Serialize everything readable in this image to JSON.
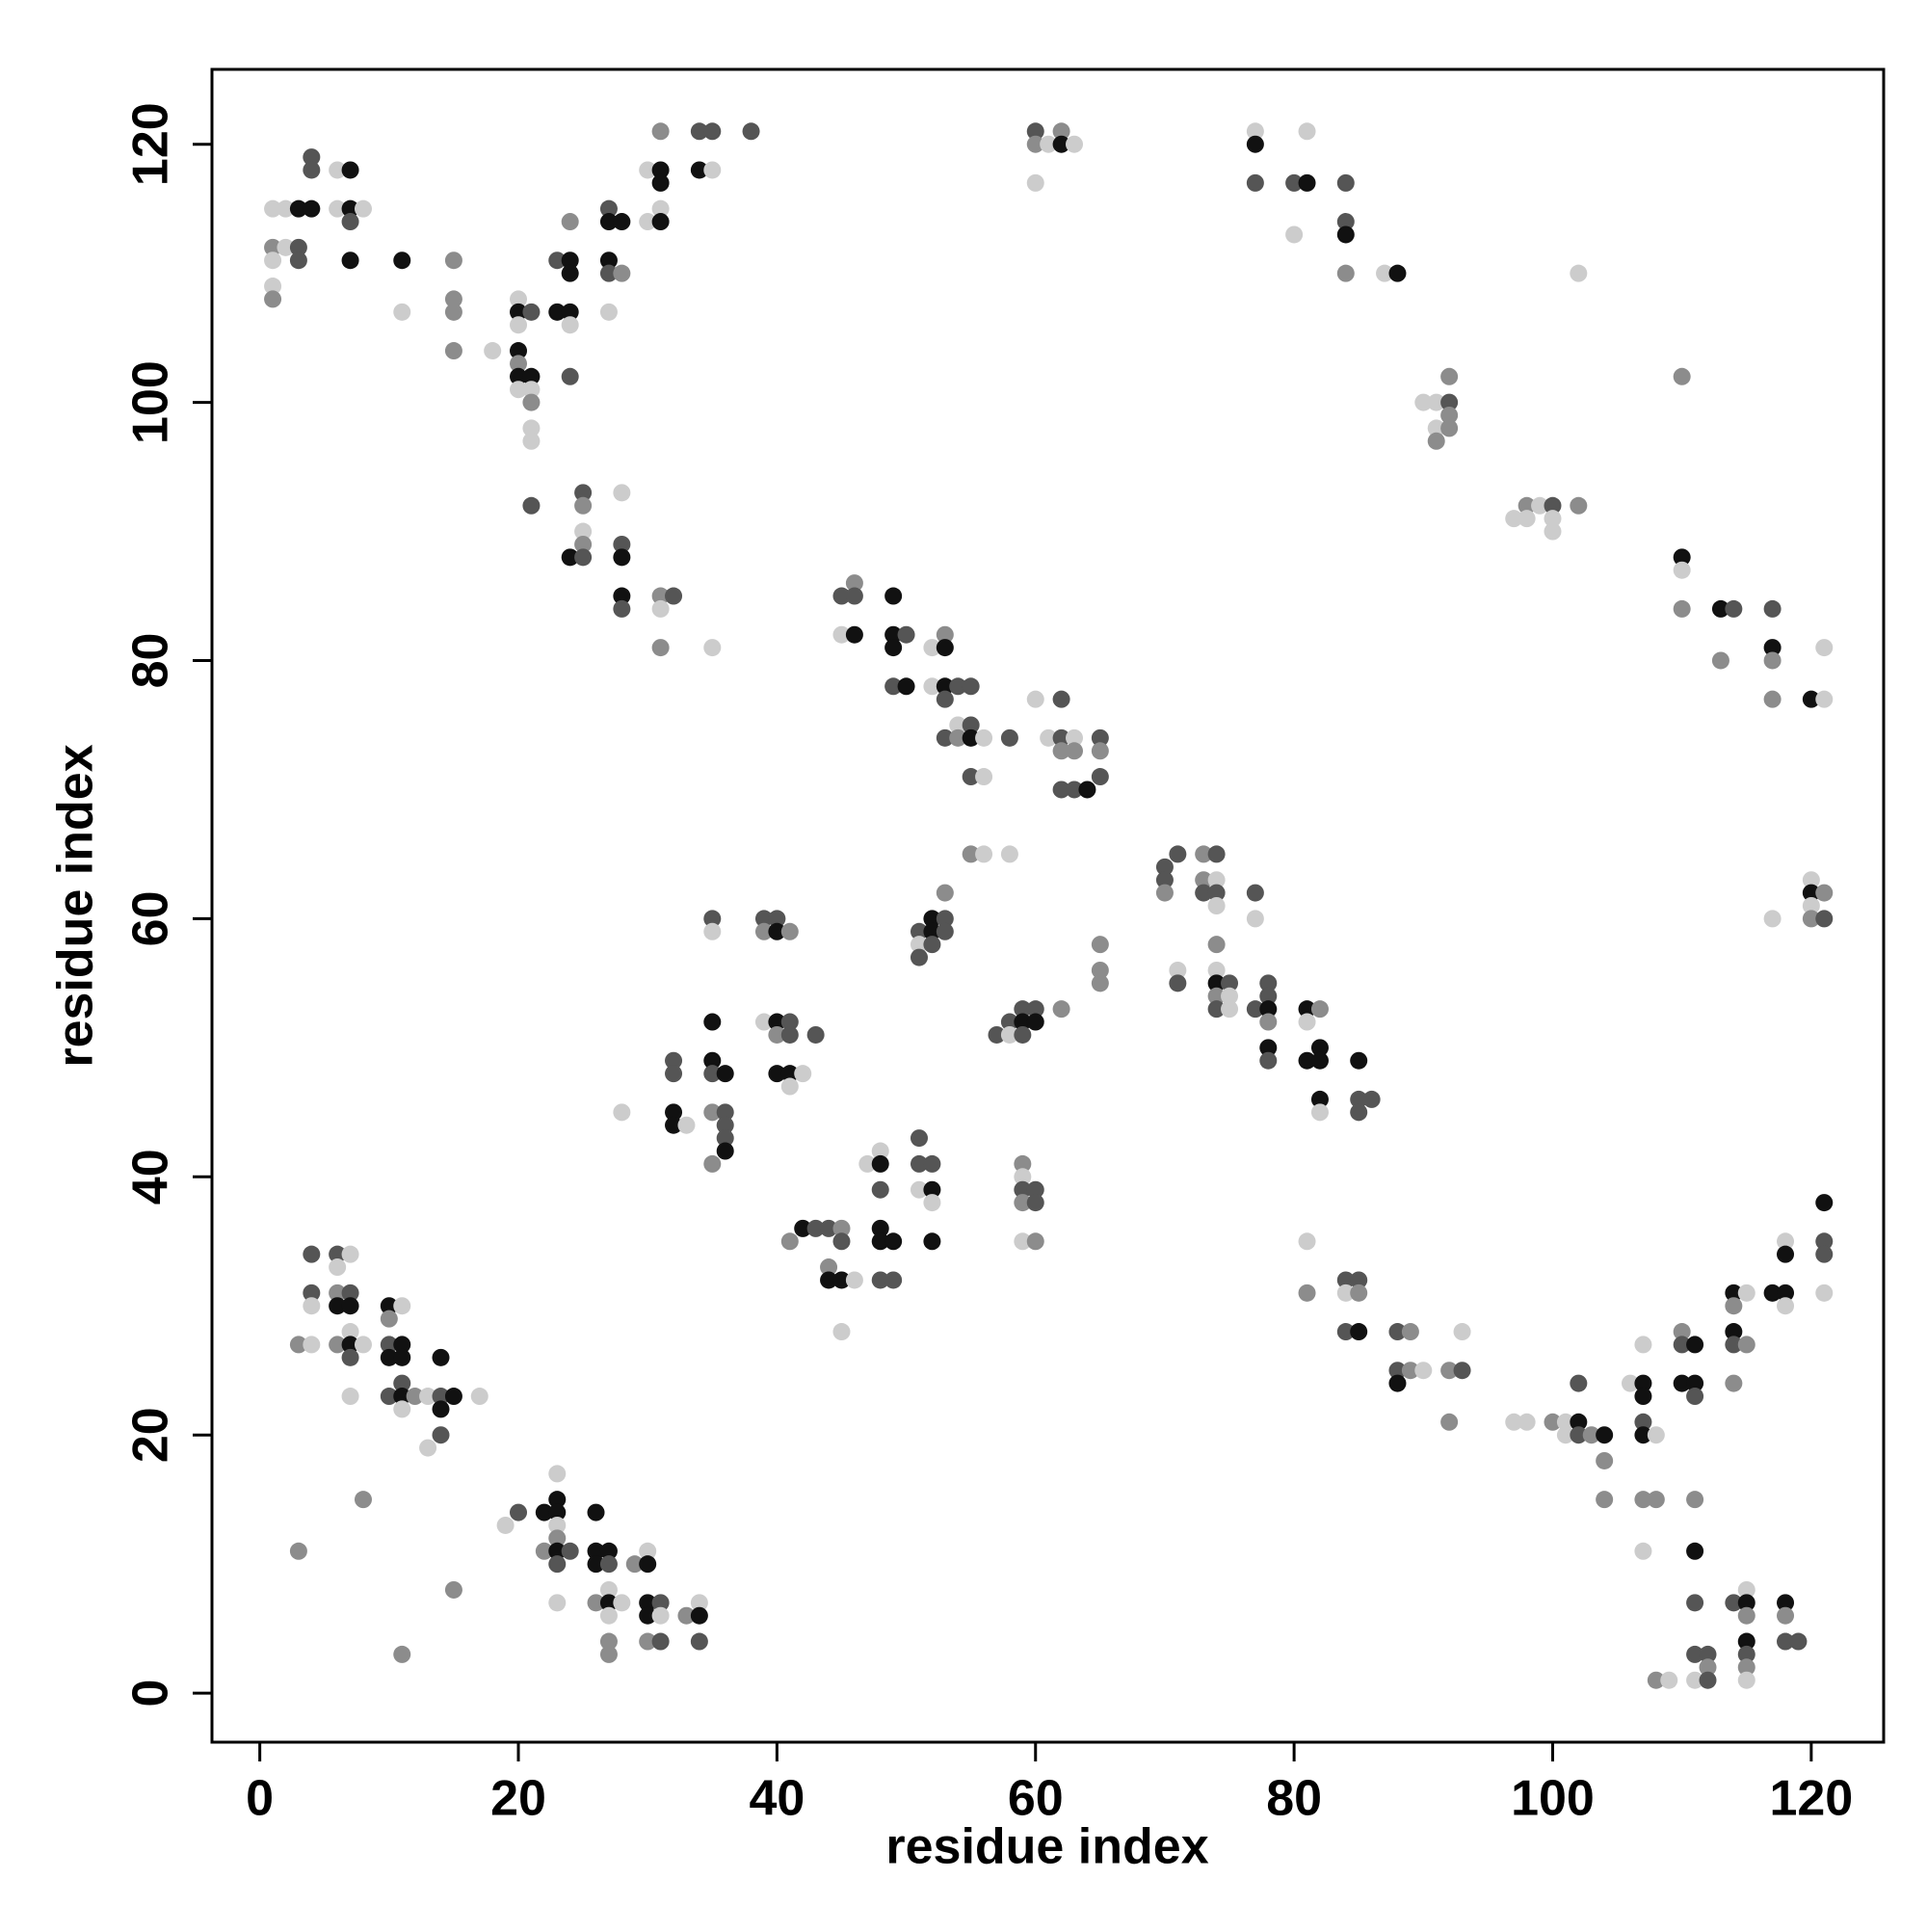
{
  "chart_data": {
    "type": "scatter",
    "xlabel": "residue index",
    "ylabel": "residue index",
    "xlim": [
      -3.7,
      125.6
    ],
    "ylim": [
      -3.8,
      125.8
    ],
    "xticks": [
      0,
      20,
      40,
      60,
      80,
      100,
      120
    ],
    "yticks": [
      0,
      20,
      40,
      60,
      80,
      100,
      120
    ],
    "x": [
      1,
      1,
      1,
      1,
      1,
      2,
      2,
      3,
      3,
      3,
      4,
      4,
      4,
      6,
      6,
      7,
      7,
      7,
      7,
      8,
      11,
      11,
      15,
      15,
      15,
      15,
      18,
      20,
      20,
      20,
      20,
      20,
      20,
      20,
      21,
      21,
      21,
      21,
      21,
      21,
      21,
      23,
      23,
      24,
      24,
      24,
      24,
      24,
      24,
      24,
      25,
      25,
      25,
      25,
      25,
      27,
      27,
      27,
      27,
      27,
      28,
      28,
      28,
      28,
      28,
      28,
      28,
      30,
      30,
      31,
      31,
      31,
      31,
      31,
      31,
      31,
      31,
      32,
      34,
      34,
      35,
      35,
      35,
      38,
      60,
      60,
      60,
      61,
      62,
      62,
      63,
      77,
      77,
      77,
      80,
      80,
      81,
      81,
      84,
      84,
      84,
      84,
      87,
      88,
      90,
      91,
      91,
      91,
      92,
      92,
      92,
      92,
      97,
      98,
      98,
      99,
      100,
      100,
      100,
      102,
      102,
      110,
      110,
      110,
      110,
      113,
      113,
      114,
      117,
      117,
      117,
      117,
      120,
      121,
      121,
      117,
      120,
      120,
      120,
      120,
      121,
      121,
      45,
      45,
      46,
      46,
      46,
      49,
      49,
      49,
      49,
      50,
      50,
      52,
      52,
      53,
      53,
      53,
      53,
      53,
      54,
      54,
      54,
      55,
      55,
      55,
      55,
      56,
      56,
      58,
      60,
      61,
      62,
      62,
      62,
      62,
      63,
      63,
      63,
      64,
      65,
      65,
      65,
      55,
      56,
      58,
      51,
      51,
      51,
      52,
      52,
      52,
      53,
      53,
      53,
      57,
      58,
      58,
      59,
      59,
      59,
      60,
      60,
      62,
      65,
      65,
      65,
      70,
      70,
      70,
      71,
      71,
      71,
      73,
      73,
      73,
      74,
      74,
      74,
      74,
      74,
      74,
      74,
      74,
      74,
      75,
      75,
      75,
      77,
      77,
      77,
      78,
      78,
      78,
      78,
      78,
      78,
      81,
      81,
      81,
      82,
      82,
      82,
      82,
      82,
      85,
      85,
      85,
      86,
      35,
      35,
      39,
      39,
      40,
      40,
      41,
      32,
      32,
      32,
      32,
      33,
      35,
      35,
      35,
      35,
      35,
      36,
      36,
      36,
      36,
      36,
      39,
      40,
      40,
      40,
      41,
      41,
      41,
      41,
      42,
      43,
      28,
      41,
      42,
      43,
      44,
      45,
      45,
      44,
      44,
      45,
      46,
      45,
      47,
      48,
      48,
      48,
      48,
      48,
      48,
      49,
      49,
      51,
      51,
      51,
      52,
      52,
      52,
      52,
      59,
      59,
      59,
      59,
      59,
      60,
      60,
      60,
      3,
      4,
      4,
      4,
      4,
      6,
      6,
      6,
      6,
      6,
      7,
      7,
      7,
      7,
      7,
      7,
      7,
      8,
      10,
      10,
      10,
      10,
      10,
      11,
      11,
      11,
      11,
      11,
      11,
      12,
      13,
      13,
      14,
      14,
      14,
      14,
      15,
      17,
      8,
      3,
      11,
      15,
      19,
      20,
      22,
      22,
      23,
      23,
      23,
      23,
      23,
      23,
      23,
      23,
      24,
      26,
      26,
      26,
      26,
      27,
      27,
      27,
      27,
      27,
      27,
      27,
      28,
      29,
      30,
      30,
      30,
      30,
      30,
      31,
      31,
      31,
      33,
      34,
      34,
      34,
      81,
      81,
      84,
      84,
      84,
      85,
      85,
      85,
      88,
      88,
      88,
      89,
      89,
      90,
      92,
      92,
      93,
      93,
      97,
      98,
      100,
      101,
      101,
      102,
      102,
      102,
      103,
      104,
      104,
      104,
      106,
      107,
      107,
      107,
      107,
      107,
      107,
      107,
      108,
      108,
      108,
      109,
      110,
      110,
      110,
      111,
      111,
      111,
      111,
      111,
      111,
      111,
      111,
      112,
      112,
      112,
      114,
      114,
      114,
      114,
      114,
      115,
      115,
      114,
      115,
      115,
      115,
      115,
      115,
      115,
      115,
      117,
      118,
      118,
      118,
      118,
      118,
      118,
      118,
      119,
      121,
      121,
      121,
      121
    ],
    "y": [
      115,
      112,
      111,
      109,
      108,
      115,
      112,
      115,
      112,
      111,
      119,
      118,
      115,
      118,
      115,
      118,
      115,
      114,
      111,
      115,
      111,
      107,
      111,
      108,
      107,
      104,
      104,
      108,
      107,
      106,
      104,
      103,
      102,
      101,
      107,
      102,
      101,
      100,
      98,
      97,
      92,
      111,
      107,
      114,
      111,
      110,
      107,
      106,
      102,
      88,
      93,
      92,
      90,
      89,
      88,
      115,
      114,
      111,
      110,
      107,
      114,
      110,
      93,
      89,
      88,
      85,
      84,
      118,
      114,
      121,
      118,
      117,
      115,
      114,
      85,
      84,
      81,
      85,
      121,
      118,
      121,
      118,
      81,
      121,
      121,
      120,
      117,
      120,
      121,
      120,
      120,
      121,
      120,
      117,
      117,
      113,
      121,
      117,
      117,
      114,
      113,
      110,
      110,
      110,
      100,
      100,
      98,
      97,
      102,
      100,
      99,
      98,
      91,
      92,
      91,
      92,
      92,
      91,
      90,
      92,
      110,
      102,
      88,
      87,
      84,
      84,
      80,
      84,
      84,
      81,
      80,
      77,
      77,
      81,
      77,
      60,
      63,
      62,
      61,
      60,
      62,
      60,
      85,
      82,
      86,
      85,
      82,
      85,
      82,
      81,
      78,
      82,
      78,
      81,
      78,
      82,
      81,
      78,
      77,
      74,
      78,
      75,
      74,
      78,
      75,
      74,
      71,
      74,
      71,
      74,
      77,
      74,
      77,
      74,
      73,
      70,
      74,
      73,
      70,
      70,
      74,
      73,
      71,
      65,
      65,
      65,
      59,
      58,
      57,
      60,
      59,
      58,
      62,
      60,
      59,
      51,
      52,
      51,
      53,
      52,
      51,
      53,
      52,
      53,
      58,
      56,
      55,
      64,
      63,
      62,
      65,
      56,
      55,
      65,
      63,
      62,
      65,
      63,
      62,
      61,
      58,
      56,
      55,
      54,
      53,
      55,
      54,
      53,
      62,
      60,
      53,
      55,
      54,
      53,
      52,
      50,
      49,
      53,
      52,
      49,
      53,
      50,
      49,
      46,
      45,
      49,
      46,
      45,
      46,
      60,
      59,
      60,
      59,
      60,
      59,
      59,
      49,
      48,
      45,
      44,
      44,
      52,
      49,
      48,
      45,
      41,
      48,
      45,
      44,
      43,
      42,
      52,
      52,
      51,
      48,
      52,
      51,
      48,
      47,
      48,
      51,
      45,
      35,
      36,
      36,
      36,
      36,
      35,
      33,
      32,
      32,
      32,
      28,
      41,
      42,
      41,
      39,
      36,
      35,
      32,
      35,
      32,
      43,
      41,
      39,
      41,
      39,
      38,
      35,
      41,
      40,
      39,
      38,
      35,
      39,
      38,
      35,
      27,
      27,
      34,
      31,
      30,
      34,
      33,
      31,
      30,
      27,
      34,
      31,
      30,
      28,
      27,
      26,
      23,
      27,
      30,
      29,
      27,
      26,
      23,
      30,
      27,
      26,
      24,
      23,
      22,
      23,
      23,
      19,
      26,
      23,
      22,
      20,
      23,
      23,
      15,
      11,
      3,
      8,
      13,
      14,
      14,
      11,
      17,
      15,
      14,
      13,
      12,
      11,
      10,
      7,
      11,
      14,
      11,
      10,
      7,
      11,
      10,
      8,
      7,
      6,
      4,
      3,
      7,
      10,
      11,
      10,
      7,
      6,
      4,
      7,
      6,
      4,
      6,
      7,
      6,
      4,
      35,
      31,
      32,
      31,
      28,
      32,
      31,
      28,
      28,
      25,
      24,
      28,
      25,
      25,
      25,
      21,
      28,
      25,
      21,
      21,
      21,
      21,
      20,
      24,
      21,
      20,
      20,
      20,
      18,
      15,
      24,
      27,
      24,
      23,
      21,
      20,
      15,
      11,
      20,
      15,
      1,
      1,
      28,
      27,
      24,
      27,
      24,
      23,
      15,
      11,
      7,
      3,
      1,
      3,
      2,
      1,
      31,
      30,
      28,
      27,
      24,
      31,
      27,
      7,
      8,
      7,
      6,
      4,
      3,
      2,
      1,
      31,
      35,
      34,
      31,
      30,
      7,
      6,
      4,
      4,
      38,
      35,
      34,
      31
    ],
    "colors": [
      "#ccc",
      "#8c8c8c",
      "#ccc",
      "#ccc",
      "#8c8c8c",
      "#ccc",
      "#ccc",
      "#111",
      "#555",
      "#555",
      "#555",
      "#555",
      "#111",
      "#ccc",
      "#ccc",
      "#111",
      "#111",
      "#555",
      "#111",
      "#ccc",
      "#111",
      "#ccc",
      "#8c8c8c",
      "#8c8c8c",
      "#8c8c8c",
      "#8c8c8c",
      "#ccc",
      "#ccc",
      "#111",
      "#ccc",
      "#111",
      "#8c8c8c",
      "#111",
      "#ccc",
      "#555",
      "#111",
      "#ccc",
      "#8c8c8c",
      "#ccc",
      "#ccc",
      "#555",
      "#555",
      "#111",
      "#8c8c8c",
      "#111",
      "#111",
      "#111",
      "#ccc",
      "#555",
      "#111",
      "#555",
      "#8c8c8c",
      "#ccc",
      "#8c8c8c",
      "#555",
      "#555",
      "#111",
      "#111",
      "#555",
      "#ccc",
      "#111",
      "#8c8c8c",
      "#ccc",
      "#555",
      "#111",
      "#111",
      "#555",
      "#ccc",
      "#ccc",
      "#8c8c8c",
      "#111",
      "#111",
      "#ccc",
      "#111",
      "#8c8c8c",
      "#ccc",
      "#8c8c8c",
      "#555",
      "#555",
      "#111",
      "#555",
      "#ccc",
      "#ccc",
      "#555",
      "#555",
      "#8c8c8c",
      "#ccc",
      "#ccc",
      "#8c8c8c",
      "#111",
      "#ccc",
      "#ccc",
      "#111",
      "#555",
      "#555",
      "#ccc",
      "#ccc",
      "#111",
      "#555",
      "#555",
      "#111",
      "#8c8c8c",
      "#ccc",
      "#111",
      "#ccc",
      "#ccc",
      "#ccc",
      "#8c8c8c",
      "#8c8c8c",
      "#555",
      "#8c8c8c",
      "#8c8c8c",
      "#ccc",
      "#8c8c8c",
      "#ccc",
      "#ccc",
      "#555",
      "#ccc",
      "#ccc",
      "#8c8c8c",
      "#ccc",
      "#8c8c8c",
      "#111",
      "#ccc",
      "#8c8c8c",
      "#111",
      "#8c8c8c",
      "#555",
      "#555",
      "#111",
      "#8c8c8c",
      "#8c8c8c",
      "#111",
      "#ccc",
      "#ccc",
      "#ccc",
      "#ccc",
      "#111",
      "#ccc",
      "#8c8c8c",
      "#8c8c8c",
      "#555",
      "#555",
      "#ccc",
      "#8c8c8c",
      "#555",
      "#111",
      "#111",
      "#111",
      "#111",
      "#555",
      "#555",
      "#111",
      "#ccc",
      "#ccc",
      "#8c8c8c",
      "#111",
      "#111",
      "#555",
      "#555",
      "#555",
      "#ccc",
      "#8c8c8c",
      "#555",
      "#555",
      "#111",
      "#555",
      "#ccc",
      "#ccc",
      "#555",
      "#ccc",
      "#ccc",
      "#555",
      "#555",
      "#8c8c8c",
      "#555",
      "#ccc",
      "#8c8c8c",
      "#555",
      "#111",
      "#555",
      "#8c8c8c",
      "#555",
      "#8c8c8c",
      "#ccc",
      "#ccc",
      "#555",
      "#ccc",
      "#555",
      "#111",
      "#111",
      "#555",
      "#8c8c8c",
      "#555",
      "#555",
      "#555",
      "#555",
      "#ccc",
      "#555",
      "#111",
      "#555",
      "#555",
      "#111",
      "#8c8c8c",
      "#8c8c8c",
      "#8c8c8c",
      "#8c8c8c",
      "#555",
      "#555",
      "#8c8c8c",
      "#555",
      "#ccc",
      "#555",
      "#8c8c8c",
      "#8c8c8c",
      "#555",
      "#555",
      "#ccc",
      "#555",
      "#ccc",
      "#8c8c8c",
      "#ccc",
      "#111",
      "#8c8c8c",
      "#555",
      "#555",
      "#ccc",
      "#ccc",
      "#555",
      "#ccc",
      "#555",
      "#555",
      "#555",
      "#111",
      "#8c8c8c",
      "#111",
      "#555",
      "#111",
      "#ccc",
      "#111",
      "#8c8c8c",
      "#111",
      "#111",
      "#111",
      "#ccc",
      "#111",
      "#555",
      "#555",
      "#555",
      "#555",
      "#ccc",
      "#555",
      "#8c8c8c",
      "#555",
      "#111",
      "#8c8c8c",
      "#555",
      "#555",
      "#111",
      "#111",
      "#ccc",
      "#111",
      "#111",
      "#555",
      "#8c8c8c",
      "#8c8c8c",
      "#111",
      "#555",
      "#555",
      "#555",
      "#111",
      "#ccc",
      "#111",
      "#8c8c8c",
      "#111",
      "#555",
      "#555",
      "#111",
      "#ccc",
      "#ccc",
      "#555",
      "#ccc",
      "#8c8c8c",
      "#111",
      "#555",
      "#555",
      "#8c8c8c",
      "#555",
      "#8c8c8c",
      "#111",
      "#111",
      "#ccc",
      "#ccc",
      "#ccc",
      "#ccc",
      "#111",
      "#555",
      "#111",
      "#111",
      "#555",
      "#111",
      "#555",
      "#555",
      "#555",
      "#ccc",
      "#555",
      "#111",
      "#ccc",
      "#111",
      "#8c8c8c",
      "#ccc",
      "#555",
      "#8c8c8c",
      "#ccc",
      "#555",
      "#555",
      "#8c8c8c",
      "#8c8c8c",
      "#ccc",
      "#555",
      "#555",
      "#ccc",
      "#555",
      "#ccc",
      "#8c8c8c",
      "#111",
      "#8c8c8c",
      "#ccc",
      "#555",
      "#111",
      "#ccc",
      "#111",
      "#555",
      "#ccc",
      "#ccc",
      "#111",
      "#8c8c8c",
      "#555",
      "#111",
      "#555",
      "#ccc",
      "#111",
      "#111",
      "#555",
      "#111",
      "#ccc",
      "#8c8c8c",
      "#ccc",
      "#ccc",
      "#111",
      "#555",
      "#111",
      "#555",
      "#111",
      "#ccc",
      "#8c8c8c",
      "#8c8c8c",
      "#8c8c8c",
      "#8c8c8c",
      "#ccc",
      "#555",
      "#111",
      "#8c8c8c",
      "#ccc",
      "#111",
      "#111",
      "#ccc",
      "#8c8c8c",
      "#111",
      "#555",
      "#ccc",
      "#555",
      "#111",
      "#111",
      "#111",
      "#8c8c8c",
      "#111",
      "#555",
      "#ccc",
      "#111",
      "#ccc",
      "#8c8c8c",
      "#8c8c8c",
      "#ccc",
      "#8c8c8c",
      "#ccc",
      "#111",
      "#111",
      "#111",
      "#8c8c8c",
      "#555",
      "#ccc",
      "#555",
      "#8c8c8c",
      "#ccc",
      "#111",
      "#555",
      "#ccc",
      "#8c8c8c",
      "#555",
      "#ccc",
      "#555",
      "#555",
      "#8c8c8c",
      "#111",
      "#555",
      "#555",
      "#111",
      "#8c8c8c",
      "#8c8c8c",
      "#ccc",
      "#8c8c8c",
      "#8c8c8c",
      "#ccc",
      "#555",
      "#ccc",
      "#ccc",
      "#8c8c8c",
      "#ccc",
      "#ccc",
      "#555",
      "#111",
      "#555",
      "#8c8c8c",
      "#111",
      "#8c8c8c",
      "#8c8c8c",
      "#ccc",
      "#ccc",
      "#111",
      "#111",
      "#555",
      "#111",
      "#8c8c8c",
      "#ccc",
      "#ccc",
      "#8c8c8c",
      "#8c8c8c",
      "#ccc",
      "#8c8c8c",
      "#555",
      "#111",
      "#111",
      "#111",
      "#555",
      "#8c8c8c",
      "#111",
      "#555",
      "#555",
      "#ccc",
      "#555",
      "#8c8c8c",
      "#555",
      "#111",
      "#8c8c8c",
      "#111",
      "#555",
      "#8c8c8c",
      "#ccc",
      "#8c8c8c",
      "#555",
      "#ccc",
      "#111",
      "#8c8c8c",
      "#111",
      "#555",
      "#8c8c8c",
      "#ccc",
      "#111",
      "#ccc",
      "#111",
      "#111",
      "#ccc",
      "#111",
      "#8c8c8c",
      "#555",
      "#555",
      "#111",
      "#555",
      "#555",
      "#ccc"
    ]
  }
}
